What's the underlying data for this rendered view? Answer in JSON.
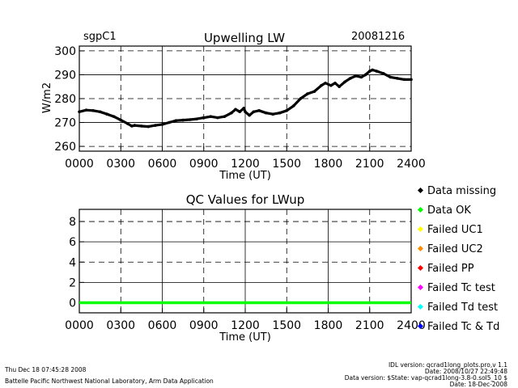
{
  "header": {
    "site": "sgpC1",
    "date": "20081216"
  },
  "chart_data": [
    {
      "type": "line",
      "title": "Upwelling LW",
      "xlabel": "Time (UT)",
      "ylabel": "W/m2",
      "xlim": [
        0,
        24
      ],
      "ylim": [
        258,
        302
      ],
      "xtick_values": [
        0,
        3,
        6,
        9,
        12,
        15,
        18,
        21,
        24
      ],
      "xtick_labels": [
        "0000",
        "0300",
        "0600",
        "0900",
        "1200",
        "1500",
        "1800",
        "2100",
        "2400"
      ],
      "ytick_values": [
        260,
        270,
        280,
        290,
        300
      ],
      "ytick_labels": [
        "260",
        "270",
        "280",
        "290",
        "300"
      ],
      "solid_grid_y": [
        270,
        290
      ],
      "dashed_grid_y": [
        260,
        280,
        300
      ],
      "solid_grid_x": [
        6,
        12,
        18
      ],
      "dashed_grid_x": [
        3,
        9,
        15,
        21
      ],
      "series": [
        {
          "color": "#000000",
          "x": [
            0,
            0.5,
            1.0,
            1.5,
            2.0,
            2.5,
            3.0,
            3.5,
            3.8,
            4.0,
            4.5,
            5.0,
            5.5,
            6.0,
            6.5,
            7.0,
            7.5,
            8.0,
            8.5,
            9.0,
            9.5,
            10.0,
            10.5,
            11.0,
            11.3,
            11.6,
            11.9,
            12.0,
            12.3,
            12.6,
            13.0,
            13.5,
            14.0,
            14.5,
            15.0,
            15.5,
            16.0,
            16.5,
            17.0,
            17.5,
            17.8,
            18.2,
            18.5,
            18.8,
            19.2,
            19.6,
            20.0,
            20.4,
            20.7,
            21.0,
            21.2,
            21.5,
            22.0,
            22.5,
            23.0,
            23.5,
            24.0
          ],
          "y": [
            274.5,
            275.2,
            275.0,
            274.5,
            273.5,
            272.5,
            271.0,
            269.5,
            268.5,
            268.8,
            268.5,
            268.3,
            268.8,
            269.2,
            270.0,
            270.8,
            271.0,
            271.2,
            271.5,
            272.0,
            272.5,
            272.0,
            272.5,
            274.0,
            275.5,
            274.5,
            276.0,
            274.5,
            273.0,
            274.5,
            275.0,
            274.0,
            273.5,
            274.0,
            275.0,
            277.0,
            280.0,
            282.0,
            283.0,
            285.5,
            286.5,
            285.5,
            286.5,
            285.0,
            287.0,
            288.5,
            289.5,
            289.0,
            290.0,
            291.5,
            292.0,
            291.5,
            290.5,
            289.0,
            288.5,
            288.0,
            288.0
          ]
        }
      ]
    },
    {
      "type": "line",
      "title": "QC Values for LWup",
      "xlabel": "Time (UT)",
      "ylabel": "",
      "xlim": [
        0,
        24
      ],
      "ylim": [
        -1,
        9.2
      ],
      "xtick_values": [
        0,
        3,
        6,
        9,
        12,
        15,
        18,
        21,
        24
      ],
      "xtick_labels": [
        "0000",
        "0300",
        "0600",
        "0900",
        "1200",
        "1500",
        "1800",
        "2100",
        "2400"
      ],
      "ytick_values": [
        0,
        2,
        4,
        6,
        8
      ],
      "ytick_labels": [
        "0",
        "2",
        "4",
        "6",
        "8"
      ],
      "solid_grid_y": [
        2,
        6
      ],
      "dashed_grid_y": [
        0,
        4,
        8
      ],
      "solid_grid_x": [
        6,
        12,
        18
      ],
      "dashed_grid_x": [
        3,
        9,
        15,
        21
      ],
      "series": [
        {
          "color": "#00ff00",
          "x": [
            0,
            24
          ],
          "y": [
            0,
            0
          ]
        }
      ]
    }
  ],
  "legend": [
    {
      "label": "Data missing",
      "color": "#000000"
    },
    {
      "label": "Data OK",
      "color": "#00ff00"
    },
    {
      "label": "Failed UC1",
      "color": "#ffff00"
    },
    {
      "label": "Failed UC2",
      "color": "#ff8c00"
    },
    {
      "label": "Failed PP",
      "color": "#ff0000"
    },
    {
      "label": "Failed Tc test",
      "color": "#ff00ff"
    },
    {
      "label": "Failed Td test",
      "color": "#00ffff"
    },
    {
      "label": "Failed Tc & Td",
      "color": "#0000ff"
    }
  ],
  "footer": {
    "timestamp": "Thu Dec 18 07:45:28 2008",
    "lab": "Battelle Pacific Northwest National Laboratory, Arm Data Application",
    "idl": "IDL version: qcrad1long_plots.pro,v 1.1",
    "idl_date": "Date: 2008/10/27 22:49:48",
    "data_version": "Data version: $State: vap-qcrad1long-3.8-0.sol5_10 $",
    "data_date": "Date: 18-Dec-2008"
  }
}
